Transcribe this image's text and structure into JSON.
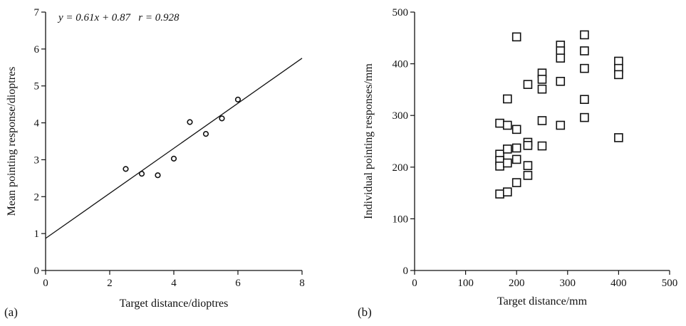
{
  "chart_data": [
    {
      "type": "scatter",
      "panel_label": "(a)",
      "annotation": "y = 0.61x + 0.87   r = 0.928",
      "xlabel": "Target distance/dioptres",
      "ylabel": "Mean pointing response/dioptres",
      "xlim": [
        0,
        8
      ],
      "ylim": [
        0,
        7
      ],
      "xticks": [
        0,
        2,
        4,
        6,
        8
      ],
      "yticks": [
        0,
        1,
        2,
        3,
        4,
        5,
        6,
        7
      ],
      "grid": false,
      "marker": "circle",
      "points": [
        {
          "x": 2.5,
          "y": 2.75
        },
        {
          "x": 3.0,
          "y": 2.62
        },
        {
          "x": 3.5,
          "y": 2.58
        },
        {
          "x": 4.0,
          "y": 3.03
        },
        {
          "x": 4.5,
          "y": 4.02
        },
        {
          "x": 5.0,
          "y": 3.7
        },
        {
          "x": 5.5,
          "y": 4.12
        },
        {
          "x": 6.0,
          "y": 4.63
        }
      ],
      "fit_line": {
        "slope": 0.61,
        "intercept": 0.87,
        "x_range": [
          0,
          8
        ]
      }
    },
    {
      "type": "scatter",
      "panel_label": "(b)",
      "xlabel": "Target distance/mm",
      "ylabel": "Individual pointing responses/mm",
      "xlim": [
        0,
        500
      ],
      "ylim": [
        0,
        500
      ],
      "xticks": [
        0,
        100,
        200,
        300,
        400,
        500
      ],
      "yticks": [
        0,
        100,
        200,
        300,
        400,
        500
      ],
      "grid": false,
      "marker": "square",
      "points": [
        {
          "x": 167,
          "y": 285
        },
        {
          "x": 167,
          "y": 225
        },
        {
          "x": 167,
          "y": 213
        },
        {
          "x": 167,
          "y": 202
        },
        {
          "x": 167,
          "y": 148
        },
        {
          "x": 182,
          "y": 332
        },
        {
          "x": 182,
          "y": 281
        },
        {
          "x": 182,
          "y": 235
        },
        {
          "x": 182,
          "y": 208
        },
        {
          "x": 182,
          "y": 152
        },
        {
          "x": 200,
          "y": 452
        },
        {
          "x": 200,
          "y": 273
        },
        {
          "x": 200,
          "y": 237
        },
        {
          "x": 200,
          "y": 215
        },
        {
          "x": 200,
          "y": 170
        },
        {
          "x": 222,
          "y": 360
        },
        {
          "x": 222,
          "y": 248
        },
        {
          "x": 222,
          "y": 242
        },
        {
          "x": 222,
          "y": 203
        },
        {
          "x": 222,
          "y": 184
        },
        {
          "x": 250,
          "y": 382
        },
        {
          "x": 250,
          "y": 370
        },
        {
          "x": 250,
          "y": 351
        },
        {
          "x": 250,
          "y": 290
        },
        {
          "x": 250,
          "y": 241
        },
        {
          "x": 286,
          "y": 436
        },
        {
          "x": 286,
          "y": 425
        },
        {
          "x": 286,
          "y": 411
        },
        {
          "x": 286,
          "y": 366
        },
        {
          "x": 286,
          "y": 281
        },
        {
          "x": 333,
          "y": 456
        },
        {
          "x": 333,
          "y": 425
        },
        {
          "x": 333,
          "y": 391
        },
        {
          "x": 333,
          "y": 331
        },
        {
          "x": 333,
          "y": 296
        },
        {
          "x": 400,
          "y": 405
        },
        {
          "x": 400,
          "y": 391
        },
        {
          "x": 400,
          "y": 379
        },
        {
          "x": 400,
          "y": 257
        }
      ]
    }
  ]
}
